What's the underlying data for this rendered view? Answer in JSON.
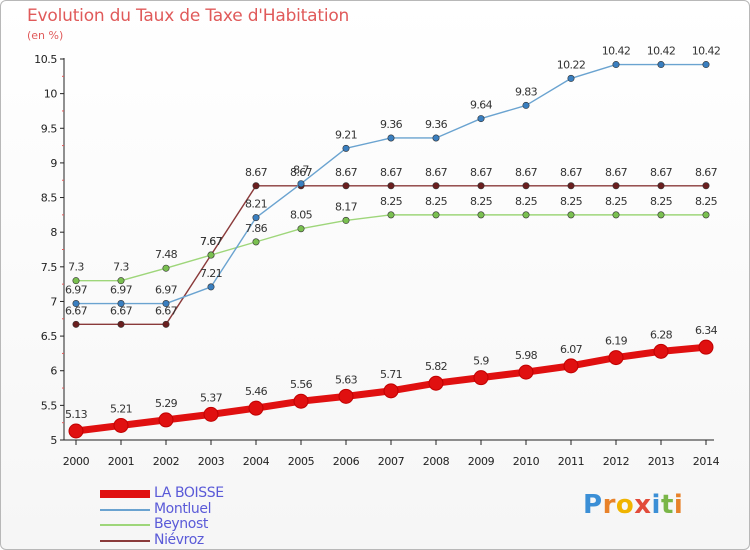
{
  "title": "Evolution du Taux de Taxe d'Habitation",
  "unit_label": "(en %)",
  "logo": {
    "text": "Proxiti",
    "letter_colors": [
      "#3b8fd6",
      "#e8822a",
      "#f0b400",
      "#e24b3a",
      "#3b8fd6",
      "#7ab648",
      "#e8822a"
    ]
  },
  "chart_data": {
    "type": "line",
    "title": "Evolution du Taux de Taxe d'Habitation",
    "ylabel": "(en %)",
    "x": [
      2000,
      2001,
      2002,
      2003,
      2004,
      2005,
      2006,
      2007,
      2008,
      2009,
      2010,
      2011,
      2012,
      2013,
      2014
    ],
    "ylim": [
      5,
      10.5
    ],
    "yticks": [
      "5",
      "5.5",
      "6",
      "6.5",
      "7",
      "7.5",
      "8",
      "8.5",
      "9",
      "9.5",
      "10",
      "10.5"
    ],
    "grid": false,
    "legend_position": "bottom-left",
    "series": [
      {
        "name": "LA BOISSE",
        "color": "#e01010",
        "values": [
          5.13,
          5.21,
          5.29,
          5.37,
          5.46,
          5.56,
          5.63,
          5.71,
          5.82,
          5.9,
          5.98,
          6.07,
          6.19,
          6.28,
          6.34
        ],
        "labels": [
          "5.13",
          "5.21",
          "5.29",
          "5.37",
          "5.46",
          "5.56",
          "5.63",
          "5.71",
          "5.82",
          "5.9",
          "5.98",
          "6.07",
          "6.19",
          "6.28",
          "6.34"
        ]
      },
      {
        "name": "Montluel",
        "color": "#6aa3d0",
        "marker_color": "#3a7fc0",
        "values": [
          6.97,
          6.97,
          6.97,
          7.21,
          8.21,
          8.7,
          9.21,
          9.36,
          9.36,
          9.64,
          9.83,
          10.22,
          10.42,
          10.42,
          10.42
        ],
        "labels": [
          "6.97",
          "6.97",
          "6.97",
          "7.21",
          "8.21",
          "8.7",
          "9.21",
          "9.36",
          "9.36",
          "9.64",
          "9.83",
          "10.22",
          "10.42",
          "10.42",
          "10.42"
        ]
      },
      {
        "name": "Beynost",
        "color": "#9ed67a",
        "marker_color": "#7ac050",
        "values": [
          7.3,
          7.3,
          7.48,
          7.67,
          7.86,
          8.05,
          8.17,
          8.25,
          8.25,
          8.25,
          8.25,
          8.25,
          8.25,
          8.25,
          8.25
        ],
        "labels": [
          "7.3",
          "7.3",
          "7.48",
          "7.67",
          "7.86",
          "8.05",
          "8.17",
          "8.25",
          "8.25",
          "8.25",
          "8.25",
          "8.25",
          "8.25",
          "8.25",
          "8.25"
        ]
      },
      {
        "name": "Niévroz",
        "color": "#8a3a3a",
        "marker_color": "#6a1f1f",
        "values": [
          6.67,
          6.67,
          6.67,
          7.67,
          8.67,
          8.67,
          8.67,
          8.67,
          8.67,
          8.67,
          8.67,
          8.67,
          8.67,
          8.67,
          8.67
        ],
        "labels": [
          "6.67",
          "6.67",
          "6.67",
          "7.67",
          "8.67",
          "8.67",
          "8.67",
          "8.67",
          "8.67",
          "8.67",
          "8.67",
          "8.67",
          "8.67",
          "8.67",
          "8.67"
        ]
      }
    ]
  }
}
